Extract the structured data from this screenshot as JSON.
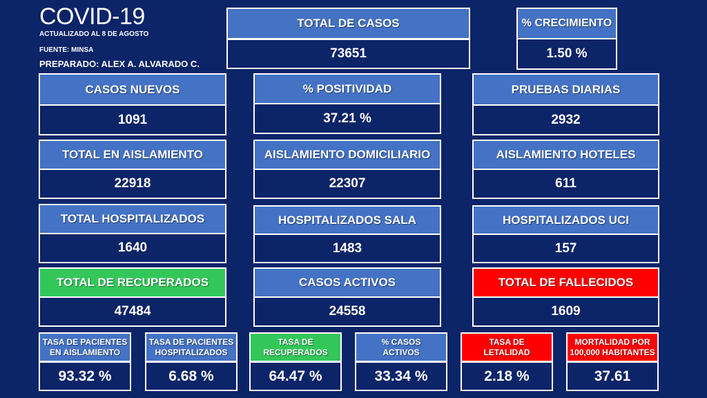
{
  "header": {
    "title": "COVID-19",
    "updated": "ACTUALIZADO  AL 8 DE AGOSTO",
    "source": "FUENTE: MINSA",
    "prepared": "PREPARADO:  ALEX A. ALVARADO  C."
  },
  "colors": {
    "background": "#0c2468",
    "card_head": "#4472c4",
    "recovered": "#33c75a",
    "deaths": "#ff0000",
    "border": "#ffffff"
  },
  "cards": {
    "total_casos": {
      "label": "TOTAL DE CASOS",
      "value": "73651"
    },
    "crecimiento": {
      "label": "% CRECIMIENTO",
      "value": "1.50 %"
    },
    "casos_nuevos": {
      "label": "CASOS NUEVOS",
      "value": "1091"
    },
    "positividad": {
      "label": "% POSITIVIDAD",
      "value": "37.21 %"
    },
    "pruebas_diarias": {
      "label": "PRUEBAS DIARIAS",
      "value": "2932"
    },
    "total_aislamiento": {
      "label": "TOTAL EN AISLAMIENTO",
      "value": "22918"
    },
    "aislamiento_domiciliario": {
      "label": "AISLAMIENTO DOMICILIARIO",
      "value": "22307"
    },
    "aislamiento_hoteles": {
      "label": "AISLAMIENTO HOTELES",
      "value": "611"
    },
    "total_hospitalizados": {
      "label": "TOTAL HOSPITALIZADOS",
      "value": "1640"
    },
    "hospitalizados_sala": {
      "label": "HOSPITALIZADOS SALA",
      "value": "1483"
    },
    "hospitalizados_uci": {
      "label": "HOSPITALIZADOS UCI",
      "value": "157"
    },
    "total_recuperados": {
      "label": "TOTAL DE RECUPERADOS",
      "value": "47484"
    },
    "casos_activos": {
      "label": "CASOS ACTIVOS",
      "value": "24558"
    },
    "total_fallecidos": {
      "label": "TOTAL DE FALLECIDOS",
      "value": "1609"
    }
  },
  "rates": {
    "aislamiento": {
      "label_line1": "TASA DE PACIENTES",
      "label_line2": "EN AISLAMIENTO",
      "value": "93.32 %"
    },
    "hospitalizados": {
      "label_line1": "TASA DE PACIENTES",
      "label_line2": "HOSPITALIZADOS",
      "value": "6.68 %"
    },
    "recuperados": {
      "label_line1": "TASA DE",
      "label_line2": "RECUPERADOS",
      "value": "64.47 %"
    },
    "activos": {
      "label_line1": "% CASOS",
      "label_line2": "ACTIVOS",
      "value": "33.34 %"
    },
    "letalidad": {
      "label_line1": "TASA DE",
      "label_line2": "LETALIDAD",
      "value": "2.18 %"
    },
    "mortalidad": {
      "label_line1": "MORTALIDAD POR",
      "label_line2": "100,000 HABITANTES",
      "value": "37.61"
    }
  }
}
